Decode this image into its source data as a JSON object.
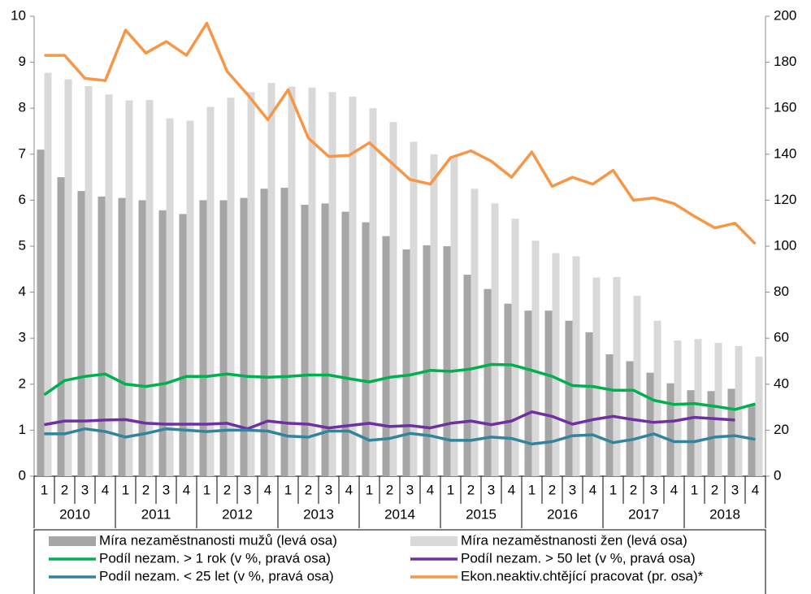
{
  "chart_data": {
    "type": "bar",
    "legend": "bottom",
    "categories": [
      "1",
      "2",
      "3",
      "4",
      "1",
      "2",
      "3",
      "4",
      "1",
      "2",
      "3",
      "4",
      "1",
      "2",
      "3",
      "4",
      "1",
      "2",
      "3",
      "4",
      "1",
      "2",
      "3",
      "4",
      "1",
      "2",
      "3",
      "4",
      "1",
      "2",
      "3",
      "4",
      "1",
      "2",
      "3",
      "4"
    ],
    "groups": [
      "2010",
      "2011",
      "2012",
      "2013",
      "2014",
      "2015",
      "2016",
      "2017",
      "2018"
    ],
    "ylim": [
      0,
      10
    ],
    "yticks": [
      0,
      1,
      2,
      3,
      4,
      5,
      6,
      7,
      8,
      9,
      10
    ],
    "y2lim": [
      0,
      200
    ],
    "y2ticks": [
      0,
      20,
      40,
      60,
      80,
      100,
      120,
      140,
      160,
      180,
      200
    ],
    "series": [
      {
        "name": "Míra nezaměstnanosti mužů (levá osa)",
        "type": "bar",
        "color": "#a6a6a6",
        "values": [
          7.1,
          6.5,
          6.2,
          6.08,
          6.05,
          6.0,
          5.78,
          5.7,
          6.0,
          6.0,
          6.05,
          6.25,
          6.27,
          5.9,
          5.93,
          5.75,
          5.52,
          5.22,
          4.93,
          5.02,
          5.0,
          4.38,
          4.07,
          3.75,
          3.6,
          3.6,
          3.38,
          3.13,
          2.65,
          2.5,
          2.25,
          2.02,
          1.87,
          1.85,
          1.9,
          1.55
        ]
      },
      {
        "name": "Míra nezaměstnanosti žen (levá osa)",
        "type": "bar",
        "color": "#d9d9d9",
        "values": [
          8.77,
          8.63,
          8.48,
          8.3,
          8.17,
          8.18,
          7.78,
          7.73,
          8.03,
          8.23,
          8.35,
          8.55,
          8.47,
          8.45,
          8.35,
          8.25,
          8.0,
          7.7,
          7.27,
          7.0,
          6.95,
          6.25,
          5.93,
          5.6,
          5.12,
          4.85,
          4.78,
          4.32,
          4.33,
          3.92,
          3.38,
          2.95,
          2.98,
          2.9,
          2.83,
          2.6
        ]
      },
      {
        "name": "Podíl nezam. > 1 rok (v %, pravá osa)",
        "type": "line",
        "axis": "y2",
        "color": "#00b050",
        "values": [
          35.4,
          41.6,
          43.4,
          44.4,
          40,
          39,
          40.4,
          43.4,
          43.4,
          44.4,
          43.4,
          43,
          43.4,
          44,
          44,
          42.4,
          41,
          43,
          44,
          46,
          45.6,
          46.6,
          48.6,
          48.4,
          46,
          43.4,
          39.4,
          39,
          37.4,
          37.4,
          33,
          31.2,
          31.6,
          30.4,
          29,
          31.4
        ]
      },
      {
        "name": "Podíl nezam. > 50 let  (v %, pravá osa)",
        "type": "line",
        "axis": "y2",
        "color": "#7030a0",
        "values": [
          22.4,
          24,
          24,
          24.4,
          24.6,
          23,
          22.6,
          22.6,
          22.6,
          23,
          20.6,
          24,
          23,
          22.6,
          21,
          22,
          23,
          21.6,
          22,
          21,
          23,
          24,
          22.4,
          24,
          28,
          26,
          22.6,
          24.6,
          26,
          24.6,
          23.4,
          24,
          25.6,
          25,
          24.4,
          null
        ]
      },
      {
        "name": "Podíl nezam. < 25 let  (v %, pravá osa)",
        "type": "line",
        "axis": "y2",
        "color": "#31849b",
        "values": [
          18.4,
          18.4,
          20.6,
          19.4,
          17,
          18.6,
          20.6,
          20,
          19.4,
          20,
          20,
          19.6,
          17.4,
          17,
          19.6,
          19.6,
          15.6,
          16.4,
          18.6,
          17.6,
          15.6,
          15.6,
          17,
          16.4,
          14,
          15,
          17.6,
          18,
          14.6,
          16,
          18.4,
          15,
          15,
          17,
          17.6,
          16
        ]
      },
      {
        "name": "Ekon.neaktiv.chtějící pracovat (pr. osa)*",
        "type": "line",
        "axis": "y2",
        "color": "#f79646",
        "values": [
          183,
          183,
          173,
          172,
          194,
          184,
          189,
          183,
          197,
          176,
          166,
          155,
          168,
          147,
          139,
          139.5,
          145,
          137,
          129,
          127,
          138.5,
          141.5,
          137,
          130,
          141,
          126,
          130,
          127,
          133,
          120,
          121,
          118.5,
          113,
          108,
          110,
          101
        ]
      }
    ]
  }
}
